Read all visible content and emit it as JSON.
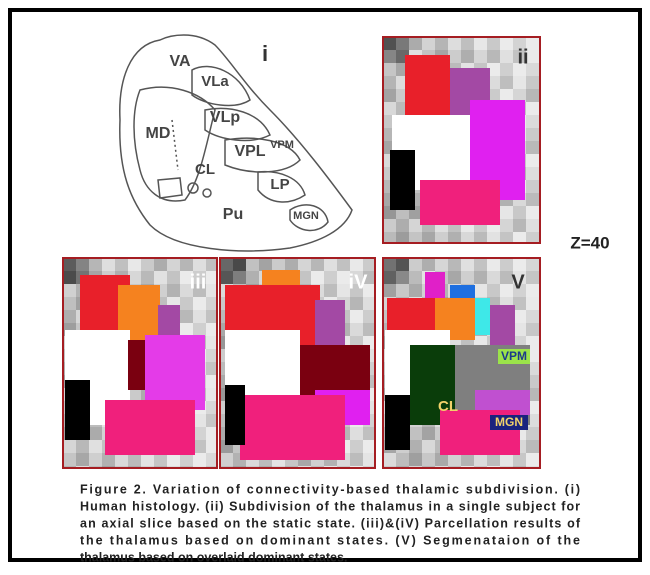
{
  "figure": {
    "panels": [
      {
        "label": "i"
      },
      {
        "label": "ii"
      },
      {
        "label": "iii"
      },
      {
        "label": "iV"
      },
      {
        "label": "V"
      }
    ],
    "histology_labels": [
      "VA",
      "VLa",
      "VLp",
      "MD",
      "VPL",
      "VPM",
      "CL",
      "LP",
      "Pu",
      "MGN"
    ],
    "segmentation_labels": [
      "VPM",
      "CL",
      "MGN"
    ],
    "slice": "Z=40",
    "caption": [
      "Figure 2. Variation of connectivity-based thalamic subdivision. (i)",
      "Human histology. (ii) Subdivision of the thalamus in a single subject for",
      "an axial slice based on the static state. (iii)&(iV) Parcellation results of",
      "the thalamus based on dominant states. (V) Segmenataion of the",
      "thalamus based on overlaid dominant states."
    ]
  }
}
